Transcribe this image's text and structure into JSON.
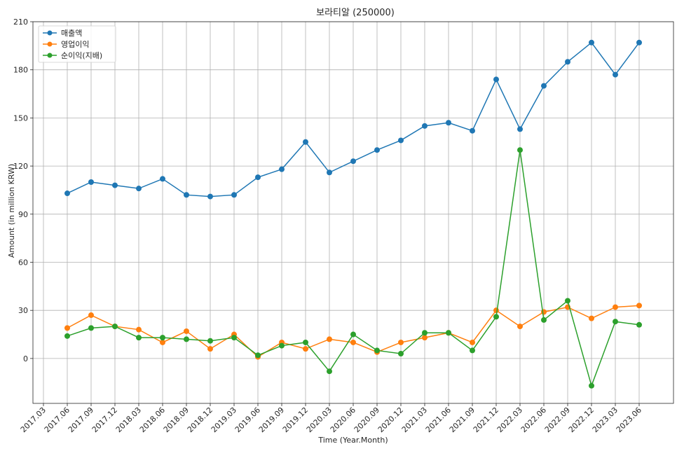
{
  "chart_data": {
    "type": "line",
    "title": "보라티알 (250000)",
    "xlabel": "Time (Year.Month)",
    "ylabel": "Amount (in million KRW)",
    "x_ticks": [
      "2017.03",
      "2017.06",
      "2017.09",
      "2017.12",
      "2018.03",
      "2018.06",
      "2018.09",
      "2018.12",
      "2019.03",
      "2019.06",
      "2019.09",
      "2019.12",
      "2020.03",
      "2020.06",
      "2020.09",
      "2020.12",
      "2021.03",
      "2021.06",
      "2021.09",
      "2021.12",
      "2022.03",
      "2022.06",
      "2022.09",
      "2022.12",
      "2023.03",
      "2023.06"
    ],
    "y_ticks": [
      "0",
      "30",
      "60",
      "90",
      "120",
      "150",
      "180",
      "210"
    ],
    "ylim": [
      -28,
      210
    ],
    "grid": true,
    "legend_position": "top-left",
    "categories": [
      "2017.06",
      "2017.09",
      "2017.12",
      "2018.03",
      "2018.06",
      "2018.09",
      "2018.12",
      "2019.03",
      "2019.06",
      "2019.09",
      "2019.12",
      "2020.03",
      "2020.06",
      "2020.09",
      "2020.12",
      "2021.03",
      "2021.06",
      "2021.09",
      "2021.12",
      "2022.03",
      "2022.06",
      "2022.09",
      "2022.12",
      "2023.03",
      "2023.06"
    ],
    "series": [
      {
        "name": "매출액",
        "color": "#1f77b4",
        "values": [
          103,
          110,
          108,
          106,
          112,
          102,
          101,
          102,
          113,
          118,
          135,
          116,
          123,
          130,
          136,
          145,
          147,
          142,
          174,
          143,
          170,
          185,
          197,
          177,
          197
        ]
      },
      {
        "name": "영업이익",
        "color": "#ff7f0e",
        "values": [
          19,
          27,
          20,
          18,
          10,
          17,
          6,
          15,
          1,
          10,
          6,
          12,
          10,
          4,
          10,
          13,
          16,
          10,
          30,
          20,
          29,
          32,
          25,
          32,
          33
        ]
      },
      {
        "name": "순이익(지배)",
        "color": "#2ca02c",
        "values": [
          14,
          19,
          20,
          13,
          13,
          12,
          11,
          13,
          2,
          8,
          10,
          -8,
          15,
          5,
          3,
          16,
          16,
          5,
          26,
          130,
          24,
          36,
          -17,
          23,
          21
        ]
      }
    ]
  }
}
